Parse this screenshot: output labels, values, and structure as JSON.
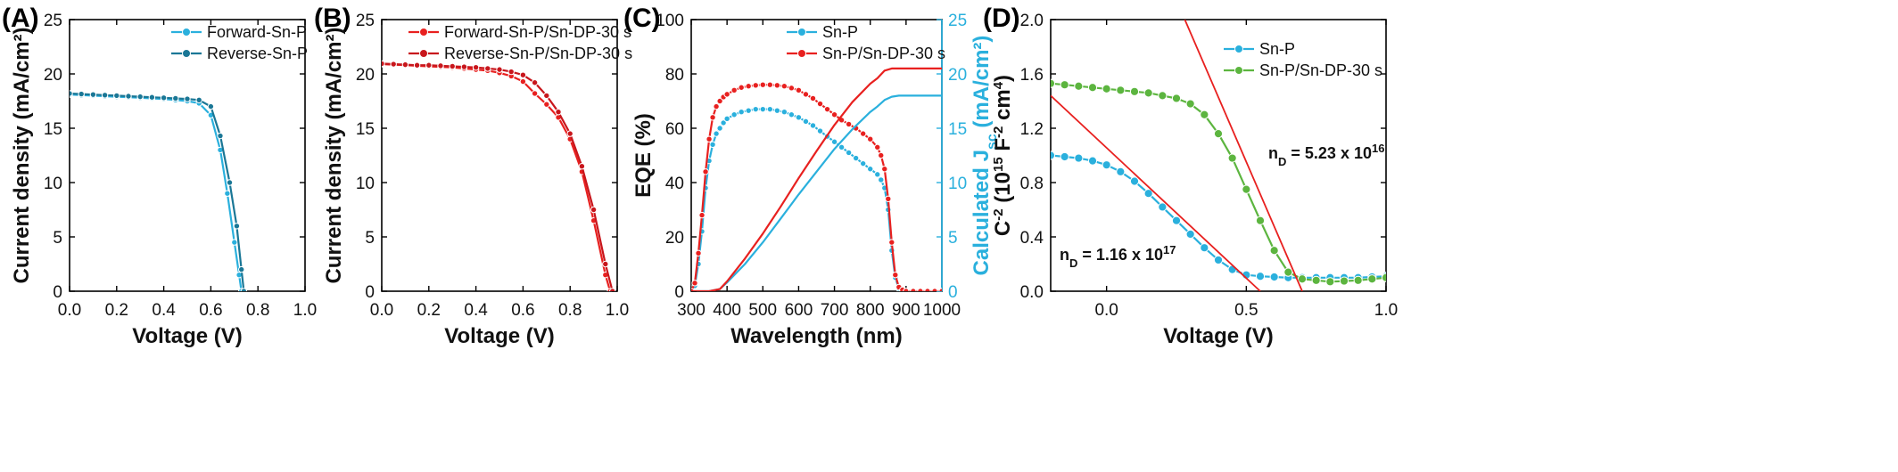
{
  "chart_data": [
    {
      "type": "line",
      "panel_label": "(A)",
      "xlabel": "Voltage (V)",
      "ylabel": "Current density (mA/cm²)",
      "xlim": [
        0.0,
        1.0
      ],
      "ylim": [
        0,
        25
      ],
      "xticks": [
        0.0,
        0.2,
        0.4,
        0.6,
        0.8,
        1.0
      ],
      "xtick_labels": [
        "0.0",
        "0.2",
        "0.4",
        "0.6",
        "0.8",
        "1.0"
      ],
      "yticks": [
        0,
        5,
        10,
        15,
        20,
        25
      ],
      "ytick_labels": [
        "0",
        "5",
        "10",
        "15",
        "20",
        "25"
      ],
      "legend_position": "top-right",
      "series": [
        {
          "name": "Forward-Sn-P",
          "color": "#2ab0dd",
          "x": [
            0.0,
            0.05,
            0.1,
            0.15,
            0.2,
            0.25,
            0.3,
            0.35,
            0.4,
            0.45,
            0.5,
            0.55,
            0.6,
            0.64,
            0.67,
            0.7,
            0.72,
            0.73
          ],
          "y": [
            18.1,
            18.05,
            18.0,
            17.95,
            17.9,
            17.85,
            17.8,
            17.75,
            17.7,
            17.6,
            17.5,
            17.3,
            16.2,
            13.0,
            9.0,
            4.5,
            1.5,
            0.0
          ]
        },
        {
          "name": "Reverse-Sn-P",
          "color": "#1a7796",
          "x": [
            0.0,
            0.05,
            0.1,
            0.15,
            0.2,
            0.25,
            0.3,
            0.35,
            0.4,
            0.45,
            0.5,
            0.55,
            0.6,
            0.64,
            0.68,
            0.71,
            0.73,
            0.74
          ],
          "y": [
            18.2,
            18.15,
            18.1,
            18.05,
            18.0,
            17.95,
            17.9,
            17.85,
            17.8,
            17.75,
            17.7,
            17.6,
            17.0,
            14.3,
            10.0,
            6.0,
            2.0,
            0.0
          ]
        }
      ]
    },
    {
      "type": "line",
      "panel_label": "(B)",
      "xlabel": "Voltage (V)",
      "ylabel": "Current density (mA/cm²)",
      "xlim": [
        0.0,
        1.0
      ],
      "ylim": [
        0,
        25
      ],
      "xticks": [
        0.0,
        0.2,
        0.4,
        0.6,
        0.8,
        1.0
      ],
      "xtick_labels": [
        "0.0",
        "0.2",
        "0.4",
        "0.6",
        "0.8",
        "1.0"
      ],
      "yticks": [
        0,
        5,
        10,
        15,
        20,
        25
      ],
      "ytick_labels": [
        "0",
        "5",
        "10",
        "15",
        "20",
        "25"
      ],
      "legend_position": "top-right",
      "series": [
        {
          "name": "Forward-Sn-P/Sn-DP-30 s",
          "color": "#e8201f",
          "x": [
            0.0,
            0.05,
            0.1,
            0.15,
            0.2,
            0.25,
            0.3,
            0.35,
            0.4,
            0.45,
            0.5,
            0.55,
            0.6,
            0.65,
            0.7,
            0.75,
            0.8,
            0.85,
            0.9,
            0.95,
            0.97
          ],
          "y": [
            20.9,
            20.85,
            20.8,
            20.75,
            20.7,
            20.65,
            20.6,
            20.5,
            20.4,
            20.3,
            20.1,
            19.8,
            19.3,
            18.2,
            17.2,
            16.0,
            14.0,
            11.0,
            6.5,
            1.5,
            0.0
          ]
        },
        {
          "name": "Reverse-Sn-P/Sn-DP-30 s",
          "color": "#c8161c",
          "x": [
            0.0,
            0.05,
            0.1,
            0.15,
            0.2,
            0.25,
            0.3,
            0.35,
            0.4,
            0.45,
            0.5,
            0.55,
            0.6,
            0.65,
            0.7,
            0.75,
            0.8,
            0.85,
            0.9,
            0.95,
            0.98
          ],
          "y": [
            20.95,
            20.9,
            20.85,
            20.8,
            20.8,
            20.75,
            20.7,
            20.65,
            20.6,
            20.5,
            20.4,
            20.2,
            19.9,
            19.2,
            18.0,
            16.5,
            14.5,
            11.5,
            7.5,
            2.5,
            0.0
          ]
        }
      ]
    },
    {
      "type": "line",
      "panel_label": "(C)",
      "xlabel": "Wavelength (nm)",
      "ylabel": "EQE (%)",
      "y2label": "Calculated J",
      "y2label_sub": "sc",
      "y2label_tail": " (mA/cm²)",
      "xlim": [
        300,
        1000
      ],
      "ylim": [
        0,
        100
      ],
      "y2lim": [
        0,
        25
      ],
      "xticks": [
        300,
        400,
        500,
        600,
        700,
        800,
        900,
        1000
      ],
      "xtick_labels": [
        "300",
        "400",
        "500",
        "600",
        "700",
        "800",
        "900",
        "1000"
      ],
      "yticks": [
        0,
        20,
        40,
        60,
        80,
        100
      ],
      "ytick_labels": [
        "0",
        "20",
        "40",
        "60",
        "80",
        "100"
      ],
      "y2ticks": [
        0,
        5,
        10,
        15,
        20,
        25
      ],
      "y2tick_labels": [
        "0",
        "5",
        "10",
        "15",
        "20",
        "25"
      ],
      "legend_position": "top-center",
      "series": [
        {
          "name": "Sn-P",
          "color": "#2ab0dd",
          "axis": "left",
          "markers": true,
          "x": [
            300,
            310,
            320,
            330,
            340,
            350,
            360,
            370,
            380,
            390,
            400,
            420,
            440,
            460,
            480,
            500,
            520,
            540,
            560,
            580,
            600,
            620,
            640,
            660,
            680,
            700,
            720,
            740,
            760,
            780,
            800,
            820,
            830,
            840,
            850,
            860,
            870,
            880,
            890,
            900,
            920,
            940,
            960,
            980,
            1000
          ],
          "y": [
            0,
            2,
            10,
            22,
            38,
            48,
            54,
            58,
            60,
            62,
            63.5,
            65,
            66,
            66.5,
            67,
            67,
            67,
            66.5,
            66,
            65,
            64,
            62.5,
            61,
            59,
            57,
            55,
            53,
            51,
            49,
            47,
            45,
            43,
            41,
            38,
            30,
            15,
            5,
            1,
            0,
            0,
            0,
            0,
            0,
            0,
            0
          ]
        },
        {
          "name": "Sn-P/Sn-DP-30 s",
          "color": "#e8201f",
          "axis": "left",
          "markers": true,
          "x": [
            300,
            310,
            320,
            330,
            340,
            350,
            360,
            370,
            380,
            390,
            400,
            420,
            440,
            460,
            480,
            500,
            520,
            540,
            560,
            580,
            600,
            620,
            640,
            660,
            680,
            700,
            720,
            740,
            760,
            780,
            800,
            820,
            830,
            840,
            850,
            860,
            870,
            880,
            890,
            900,
            920,
            940,
            960,
            980,
            1000
          ],
          "y": [
            0,
            3,
            14,
            28,
            44,
            56,
            64,
            68,
            70,
            71.5,
            72.5,
            74,
            75,
            75.5,
            75.8,
            76,
            76,
            75.8,
            75.5,
            74.8,
            74,
            72.5,
            71,
            69,
            67,
            65,
            63,
            61.5,
            60,
            58,
            56,
            53,
            50,
            45,
            34,
            18,
            6,
            1.5,
            0.5,
            0,
            0,
            0,
            0,
            0,
            0
          ]
        },
        {
          "name": "Sn-P Jsc",
          "color": "#2ab0dd",
          "axis": "right",
          "markers": false,
          "x": [
            300,
            350,
            380,
            400,
            450,
            500,
            550,
            600,
            650,
            700,
            750,
            800,
            820,
            840,
            860,
            880,
            900,
            950,
            1000
          ],
          "y": [
            0,
            0,
            0.2,
            0.8,
            2.5,
            4.5,
            6.7,
            8.9,
            11.0,
            13.1,
            14.9,
            16.5,
            17.0,
            17.6,
            17.9,
            18.0,
            18.0,
            18.0,
            18.0
          ]
        },
        {
          "name": "Sn-P/Sn-DP-30 s Jsc",
          "color": "#e8201f",
          "axis": "right",
          "markers": false,
          "x": [
            300,
            350,
            380,
            400,
            450,
            500,
            550,
            600,
            650,
            700,
            750,
            800,
            820,
            840,
            860,
            880,
            900,
            950,
            1000
          ],
          "y": [
            0,
            0,
            0.2,
            0.9,
            3.0,
            5.3,
            7.8,
            10.4,
            12.9,
            15.3,
            17.4,
            19.1,
            19.6,
            20.3,
            20.5,
            20.5,
            20.5,
            20.5,
            20.5
          ]
        }
      ]
    },
    {
      "type": "scatter",
      "panel_label": "(D)",
      "xlabel": "Voltage (V)",
      "ylabel": "C",
      "ylabel_sup": "-2",
      "ylabel_mid": " (10",
      "ylabel_sup2": "15",
      "ylabel_tail": " F",
      "ylabel_sup3": "-2",
      "ylabel_end": " cm",
      "ylabel_sup4": "4",
      "ylabel_close": ")",
      "xlim": [
        -0.2,
        1.0
      ],
      "ylim": [
        0.0,
        2.0
      ],
      "xticks": [
        0.0,
        0.5,
        1.0
      ],
      "xtick_labels": [
        "0.0",
        "0.5",
        "1.0"
      ],
      "yticks": [
        0.0,
        0.4,
        0.8,
        1.2,
        1.6,
        2.0
      ],
      "ytick_labels": [
        "0.0",
        "0.4",
        "0.8",
        "1.2",
        "1.6",
        "2.0"
      ],
      "legend_position": "top-right",
      "annotations": [
        {
          "prefix": "n",
          "sub": "D",
          "mid": " = 5.23 x 10",
          "sup": "16"
        },
        {
          "prefix": "n",
          "sub": "D",
          "mid": " = 1.16 x 10",
          "sup": "17"
        }
      ],
      "series": [
        {
          "name": "Sn-P",
          "color": "#2ab0dd",
          "x": [
            -0.2,
            -0.15,
            -0.1,
            -0.05,
            0.0,
            0.05,
            0.1,
            0.15,
            0.2,
            0.25,
            0.3,
            0.35,
            0.4,
            0.45,
            0.5,
            0.55,
            0.6,
            0.65,
            0.7,
            0.75,
            0.8,
            0.85,
            0.9,
            0.95,
            1.0
          ],
          "y": [
            1.0,
            0.99,
            0.98,
            0.96,
            0.93,
            0.88,
            0.81,
            0.72,
            0.62,
            0.52,
            0.42,
            0.32,
            0.23,
            0.16,
            0.12,
            0.11,
            0.105,
            0.1,
            0.1,
            0.1,
            0.1,
            0.1,
            0.1,
            0.105,
            0.11
          ]
        },
        {
          "name": "Sn-P/Sn-DP-30 s",
          "color": "#5cb53f",
          "x": [
            -0.2,
            -0.15,
            -0.1,
            -0.05,
            0.0,
            0.05,
            0.1,
            0.15,
            0.2,
            0.25,
            0.3,
            0.35,
            0.4,
            0.45,
            0.5,
            0.55,
            0.6,
            0.65,
            0.7,
            0.75,
            0.8,
            0.85,
            0.9,
            0.95,
            1.0
          ],
          "y": [
            1.53,
            1.52,
            1.51,
            1.5,
            1.49,
            1.48,
            1.47,
            1.46,
            1.44,
            1.42,
            1.38,
            1.3,
            1.16,
            0.98,
            0.75,
            0.52,
            0.3,
            0.14,
            0.09,
            0.08,
            0.07,
            0.075,
            0.08,
            0.09,
            0.1
          ]
        },
        {
          "name": "fit-1",
          "color": "#e8201f",
          "fit": true,
          "x": [
            -0.2,
            0.55
          ],
          "y": [
            1.44,
            0.0
          ]
        },
        {
          "name": "fit-2",
          "color": "#e8201f",
          "fit": true,
          "x": [
            0.28,
            0.7
          ],
          "y": [
            2.0,
            0.0
          ]
        }
      ]
    }
  ]
}
